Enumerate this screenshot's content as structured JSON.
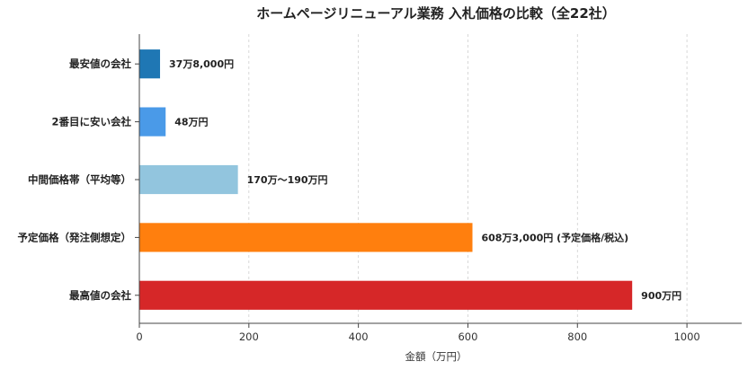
{
  "chart_data": {
    "type": "bar",
    "orientation": "horizontal",
    "title": "ホームページリニューアル業務 入札価格の比較（全22社）",
    "xlabel": "金額（万円）",
    "ylabel": "",
    "xlim": [
      0,
      1100
    ],
    "xticks": [
      0,
      200,
      400,
      600,
      800,
      1000
    ],
    "grid": "x-dashed",
    "categories": [
      "最安値の会社",
      "2番目に安い会社",
      "中間価格帯（平均等）",
      "予定価格（発注側想定）",
      "最高値の会社"
    ],
    "values": [
      37.8,
      48,
      180,
      608.3,
      900
    ],
    "value_labels": [
      "37万8,000円",
      "48万円",
      "170万～190万円",
      "608万3,000円 (予定価格/税込)",
      "900万円"
    ],
    "colors": [
      "#1f77b4",
      "#4a9ae8",
      "#92c5de",
      "#ff7f0e",
      "#d62728"
    ]
  }
}
